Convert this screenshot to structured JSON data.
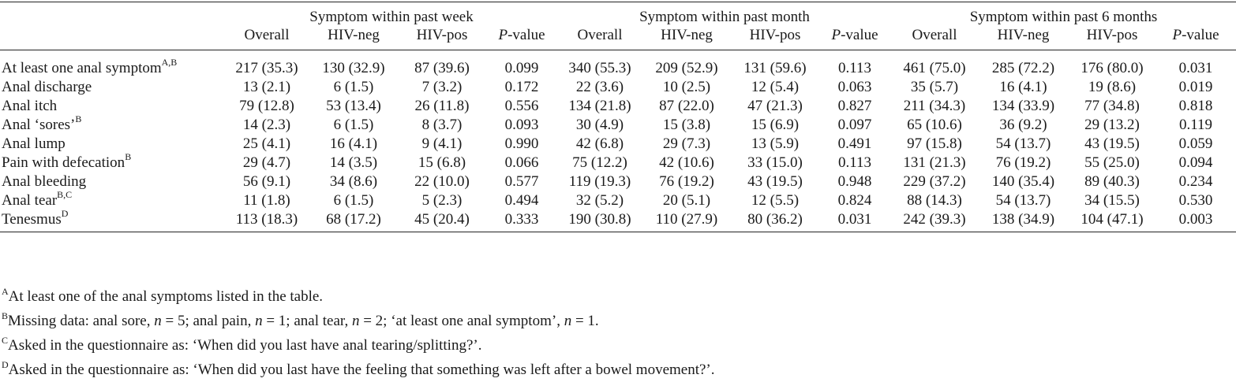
{
  "table": {
    "groups": [
      {
        "title": "Symptom within past week"
      },
      {
        "title": "Symptom within past month"
      },
      {
        "title": "Symptom within past 6 months"
      }
    ],
    "columns": [
      "Overall",
      "HIV-neg",
      "HIV-pos",
      "-value"
    ],
    "p_italic": "P",
    "rows": [
      {
        "label": "At least one anal symptom",
        "sup": "A,B",
        "values": [
          "217 (35.3)",
          "130 (32.9)",
          "87 (39.6)",
          "0.099",
          "340 (55.3)",
          "209 (52.9)",
          "131 (59.6)",
          "0.113",
          "461 (75.0)",
          "285 (72.2)",
          "176 (80.0)",
          "0.031"
        ]
      },
      {
        "label": "Anal discharge",
        "sup": "",
        "values": [
          "13 (2.1)",
          "6 (1.5)",
          "7 (3.2)",
          "0.172",
          "22 (3.6)",
          "10 (2.5)",
          "12 (5.4)",
          "0.063",
          "35 (5.7)",
          "16 (4.1)",
          "19 (8.6)",
          "0.019"
        ]
      },
      {
        "label": "Anal itch",
        "sup": "",
        "values": [
          "79 (12.8)",
          "53 (13.4)",
          "26 (11.8)",
          "0.556",
          "134 (21.8)",
          "87 (22.0)",
          "47 (21.3)",
          "0.827",
          "211 (34.3)",
          "134 (33.9)",
          "77 (34.8)",
          "0.818"
        ]
      },
      {
        "label": "Anal ‘sores’",
        "sup": "B",
        "values": [
          "14 (2.3)",
          "6 (1.5)",
          "8 (3.7)",
          "0.093",
          "30 (4.9)",
          "15 (3.8)",
          "15 (6.9)",
          "0.097",
          "65 (10.6)",
          "36 (9.2)",
          "29 (13.2)",
          "0.119"
        ]
      },
      {
        "label": "Anal lump",
        "sup": "",
        "values": [
          "25 (4.1)",
          "16 (4.1)",
          "9 (4.1)",
          "0.990",
          "42 (6.8)",
          "29 (7.3)",
          "13 (5.9)",
          "0.491",
          "97 (15.8)",
          "54 (13.7)",
          "43 (19.5)",
          "0.059"
        ]
      },
      {
        "label": "Pain with defecation",
        "sup": "B",
        "values": [
          "29 (4.7)",
          "14 (3.5)",
          "15 (6.8)",
          "0.066",
          "75 (12.2)",
          "42 (10.6)",
          "33 (15.0)",
          "0.113",
          "131 (21.3)",
          "76 (19.2)",
          "55 (25.0)",
          "0.094"
        ]
      },
      {
        "label": "Anal bleeding",
        "sup": "",
        "values": [
          "56 (9.1)",
          "34 (8.6)",
          "22 (10.0)",
          "0.577",
          "119 (19.3)",
          "76 (19.2)",
          "43 (19.5)",
          "0.948",
          "229 (37.2)",
          "140 (35.4)",
          "89 (40.3)",
          "0.234"
        ]
      },
      {
        "label": "Anal tear",
        "sup": "B,C",
        "values": [
          "11 (1.8)",
          "6 (1.5)",
          "5 (2.3)",
          "0.494",
          "32 (5.2)",
          "20 (5.1)",
          "12 (5.5)",
          "0.824",
          "88 (14.3)",
          "54 (13.7)",
          "34 (15.5)",
          "0.530"
        ]
      },
      {
        "label": "Tenesmus",
        "sup": "D",
        "values": [
          "113 (18.3)",
          "68 (17.2)",
          "45 (20.4)",
          "0.333",
          "190 (30.8)",
          "110 (27.9)",
          "80 (36.2)",
          "0.031",
          "242 (39.3)",
          "138 (34.9)",
          "104 (47.1)",
          "0.003"
        ]
      }
    ]
  },
  "footnotes": {
    "a": {
      "mark": "A",
      "text": "At least one of the anal symptoms listed in the table."
    },
    "b": {
      "mark": "B",
      "t1": "Missing data: anal sore, ",
      "n": "n",
      "t2": " = 5; anal pain, ",
      "t3": " = 1; anal tear, ",
      "t4": " = 2; ‘at least one anal symptom’, ",
      "t5": " = 1."
    },
    "c": {
      "mark": "C",
      "text": "Asked in the questionnaire as: ‘When did you last have anal tearing/splitting?’."
    },
    "d": {
      "mark": "D",
      "text": "Asked in the questionnaire as: ‘When did you last have the feeling that something was left after a bowel movement?’."
    }
  }
}
